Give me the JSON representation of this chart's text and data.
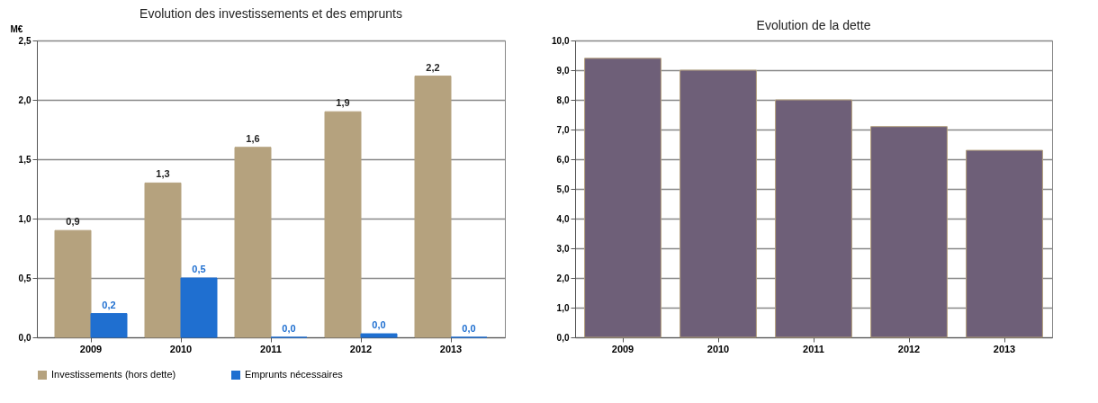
{
  "chart_data": [
    {
      "type": "bar",
      "title": "Evolution des investissements et des emprunts",
      "ylabel": "M€",
      "categories": [
        "2009",
        "2010",
        "2011",
        "2012",
        "2013"
      ],
      "series": [
        {
          "name": "Investissements (hors dette)",
          "color": "#b5a27e",
          "values": [
            0.9,
            1.3,
            1.6,
            1.9,
            2.2
          ],
          "value_labels": [
            "0,9",
            "1,3",
            "1,6",
            "1,9",
            "2,2"
          ]
        },
        {
          "name": "Emprunts nécessaires",
          "color": "#1f6fd0",
          "values": [
            0.2,
            0.5,
            0,
            0.03,
            0
          ],
          "value_labels": [
            "0,2",
            "0,5",
            "0,0",
            "0,0",
            "0,0"
          ]
        }
      ],
      "ylim": [
        0,
        2.5
      ],
      "yticks": [
        {
          "value": 0,
          "label": "0,0"
        },
        {
          "value": 0.5,
          "label": "0,5"
        },
        {
          "value": 1,
          "label": "1,0"
        },
        {
          "value": 1.5,
          "label": "1,5"
        },
        {
          "value": 2,
          "label": "2,0"
        },
        {
          "value": 2.5,
          "label": "2,5"
        }
      ],
      "grid": "y",
      "legend": "bottom"
    },
    {
      "type": "bar",
      "title": "Evolution de la dette",
      "categories": [
        "2009",
        "2010",
        "2011",
        "2012",
        "2013"
      ],
      "series": [
        {
          "color": "#6e5f78",
          "values": [
            9.4,
            9.0,
            8.0,
            7.1,
            6.3
          ]
        }
      ],
      "ylim": [
        0,
        10
      ],
      "yticks": [
        {
          "value": 0,
          "label": "0,0"
        },
        {
          "value": 1,
          "label": "1,0"
        },
        {
          "value": 2,
          "label": "2,0"
        },
        {
          "value": 3,
          "label": "3,0"
        },
        {
          "value": 4,
          "label": "4,0"
        },
        {
          "value": 5,
          "label": "5,0"
        },
        {
          "value": 6,
          "label": "6,0"
        },
        {
          "value": 7,
          "label": "7,0"
        },
        {
          "value": 8,
          "label": "8,0"
        },
        {
          "value": 9,
          "label": "9,0"
        },
        {
          "value": 10,
          "label": "10,0"
        }
      ],
      "grid": "y"
    }
  ]
}
